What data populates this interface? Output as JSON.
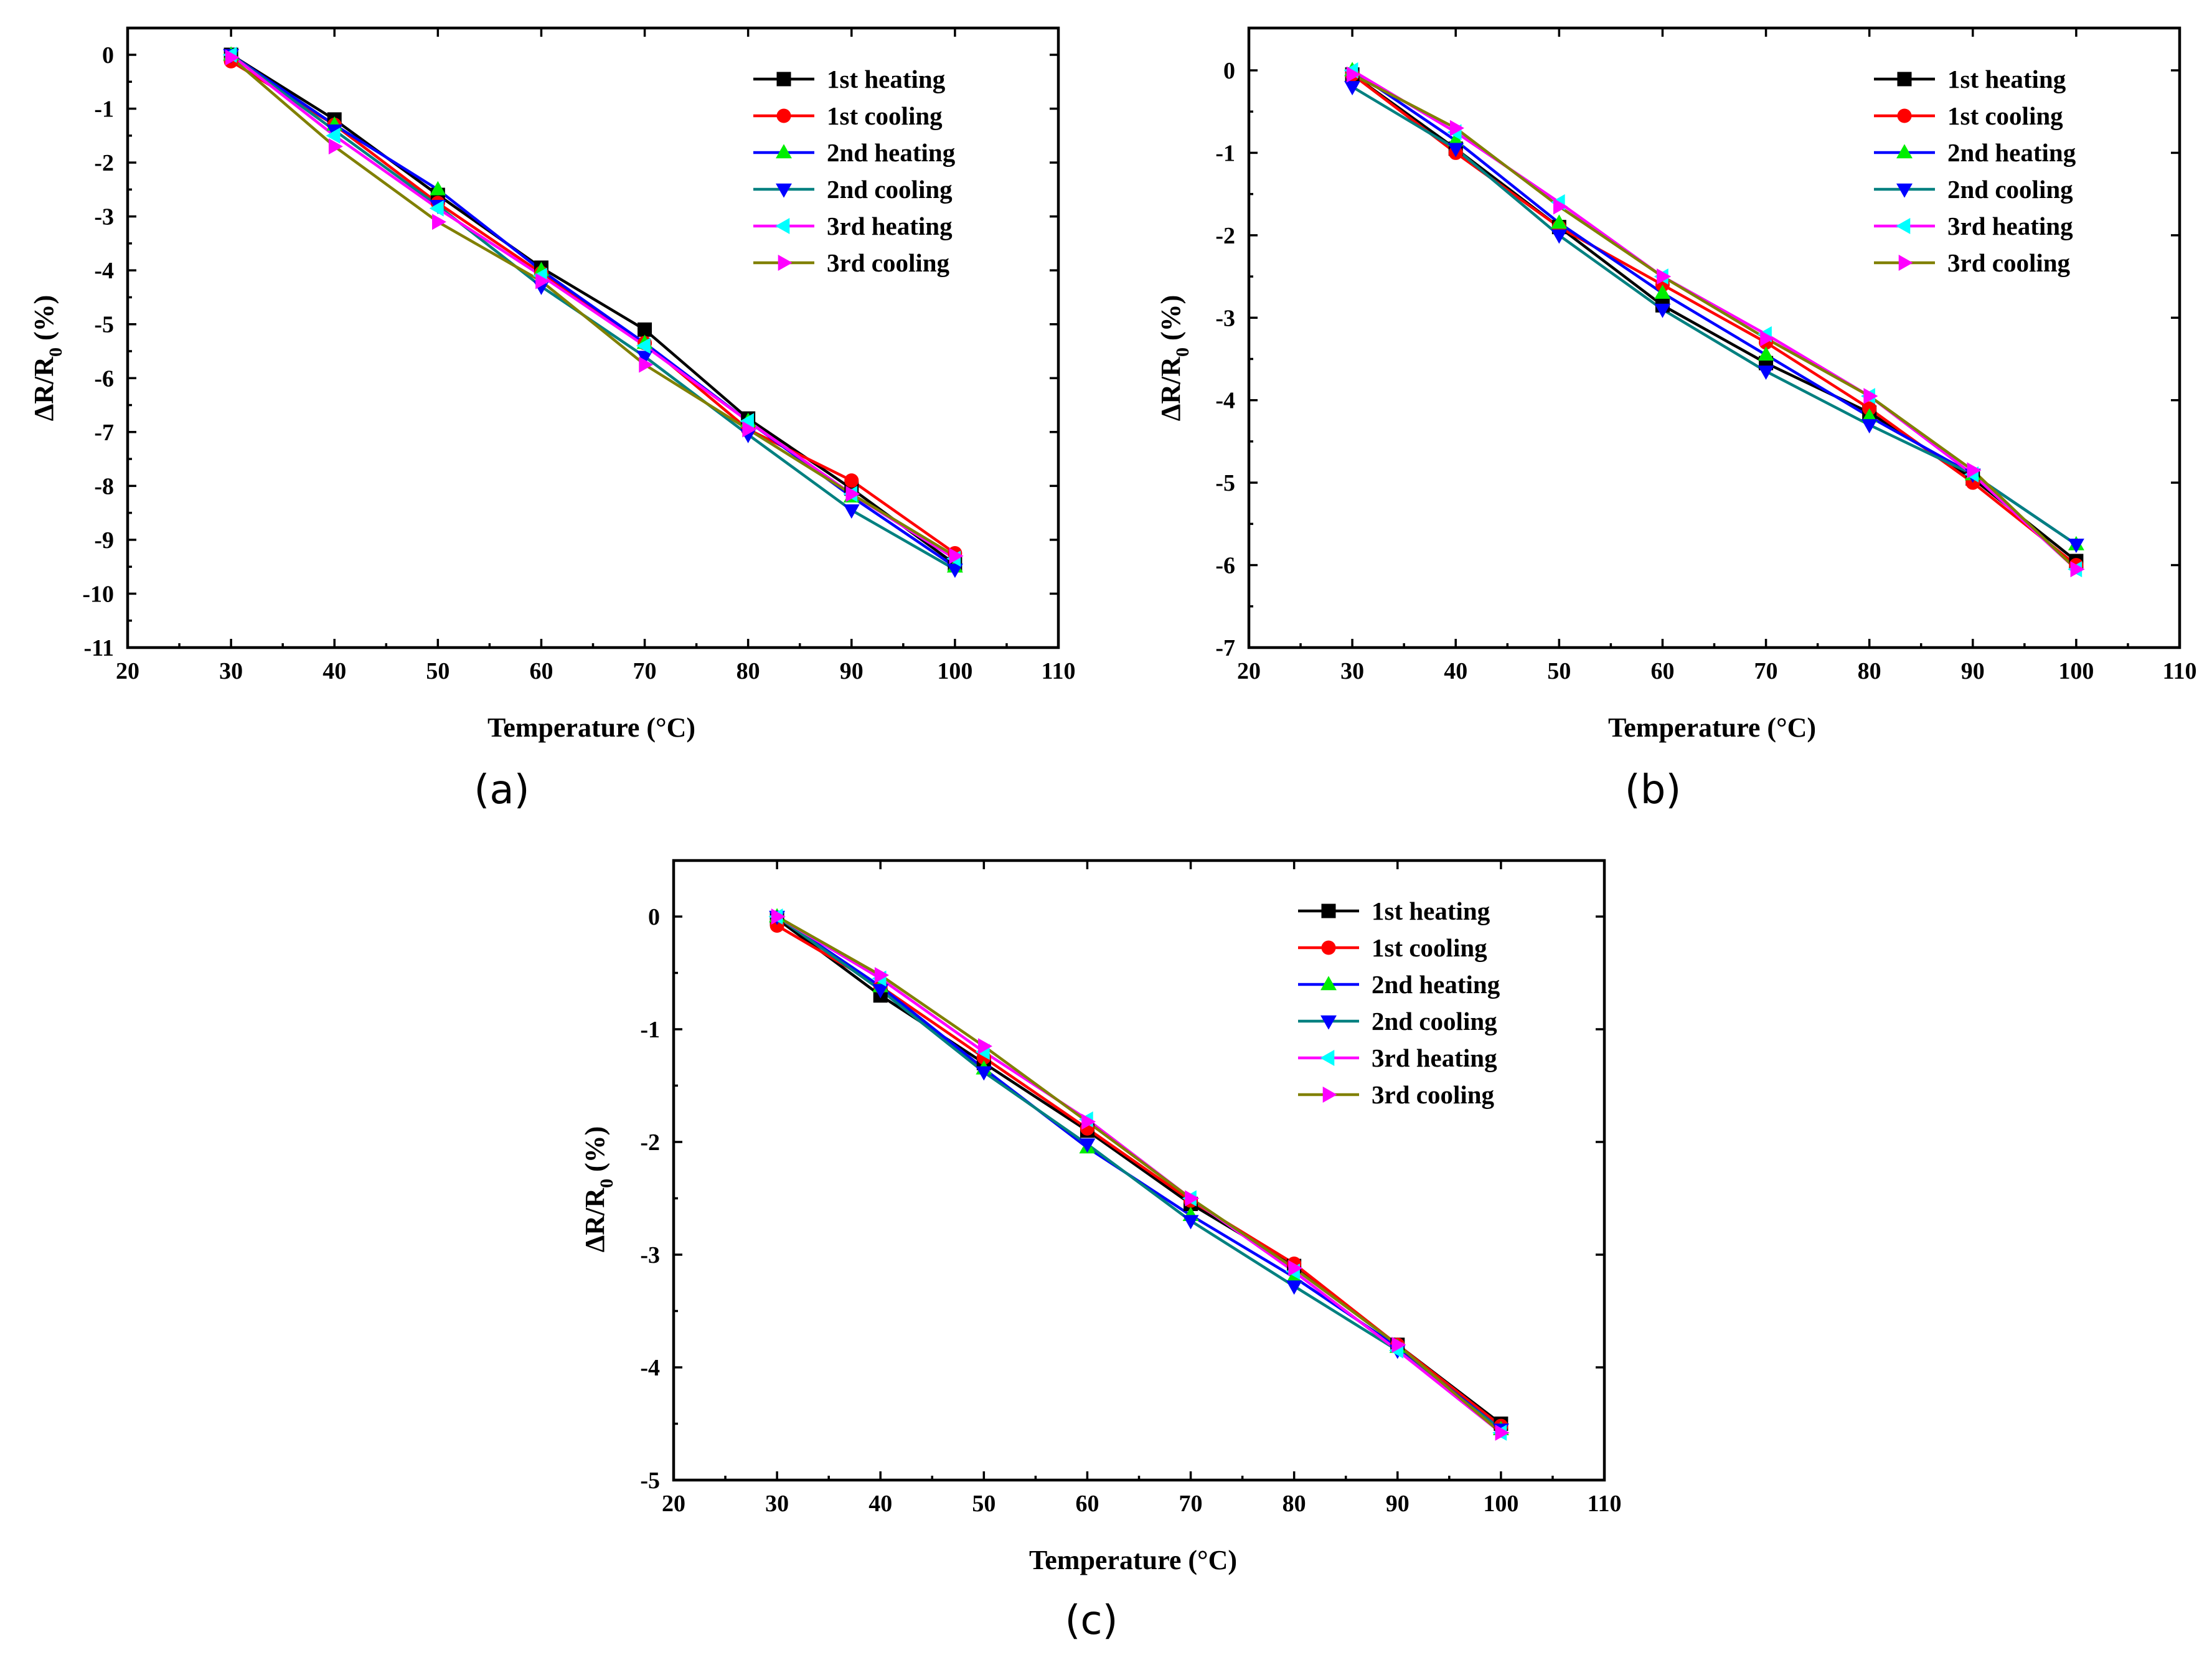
{
  "chart_data": [
    {
      "type": "line",
      "panel_label": "(a)",
      "xlabel": "Temperature (°C)",
      "ylabel_main": "ΔR/R",
      "ylabel_sub": "0",
      "ylabel_unit": " (%)",
      "xlim": [
        20,
        110
      ],
      "ylim": [
        -11,
        0.5
      ],
      "xticks": [
        "20",
        "30",
        "40",
        "50",
        "60",
        "70",
        "80",
        "90",
        "100",
        "110"
      ],
      "yticks": [
        "0",
        "-1",
        "-2",
        "-3",
        "-4",
        "-5",
        "-6",
        "-7",
        "-8",
        "-9",
        "-10",
        "-11"
      ],
      "x": [
        30,
        40,
        50,
        60,
        70,
        80,
        90,
        100
      ],
      "legend_position": "top-right",
      "series": [
        {
          "name": "1st heating",
          "color": "#000000",
          "marker": "square",
          "values": [
            0,
            -1.2,
            -2.6,
            -3.95,
            -5.1,
            -6.75,
            -8.05,
            -9.45
          ]
        },
        {
          "name": "1st cooling",
          "color": "#ff0000",
          "marker": "circle",
          "values": [
            -0.12,
            -1.3,
            -2.75,
            -4.05,
            -5.35,
            -6.95,
            -7.9,
            -9.25
          ]
        },
        {
          "name": "2nd heating",
          "color": "#0000ff",
          "marker": "triangle-up",
          "values": [
            0,
            -1.3,
            -2.5,
            -4.0,
            -5.35,
            -6.8,
            -8.2,
            -9.5
          ]
        },
        {
          "name": "2nd cooling",
          "color": "#008080",
          "marker": "triangle-down",
          "values": [
            0,
            -1.4,
            -2.8,
            -4.3,
            -5.6,
            -7.05,
            -8.45,
            -9.55
          ]
        },
        {
          "name": "3rd heating",
          "color": "#ff00ff",
          "marker": "triangle-left",
          "values": [
            0,
            -1.5,
            -2.85,
            -4.1,
            -5.4,
            -6.8,
            -8.15,
            -9.35
          ]
        },
        {
          "name": "3rd cooling",
          "color": "#808000",
          "marker": "triangle-right",
          "values": [
            -0.05,
            -1.7,
            -3.1,
            -4.2,
            -5.75,
            -6.95,
            -8.15,
            -9.3
          ]
        }
      ],
      "marker_colors": {
        "1st heating": "#000000",
        "1st cooling": "#ff0000",
        "2nd heating": "#00ee00",
        "2nd cooling": "#0000ff",
        "3rd heating": "#00ffff",
        "3rd cooling": "#ff00ff"
      }
    },
    {
      "type": "line",
      "panel_label": "(b)",
      "xlabel": "Temperature (°C)",
      "ylabel_main": "ΔR/R",
      "ylabel_sub": "0",
      "ylabel_unit": " (%)",
      "xlim": [
        20,
        110
      ],
      "ylim": [
        -7,
        0.5
      ],
      "xticks": [
        "20",
        "30",
        "40",
        "50",
        "60",
        "70",
        "80",
        "90",
        "100",
        "110"
      ],
      "yticks": [
        "0",
        "-1",
        "-2",
        "-3",
        "-4",
        "-5",
        "-6",
        "-7"
      ],
      "x": [
        30,
        40,
        50,
        60,
        70,
        80,
        90,
        100
      ],
      "legend_position": "top-right",
      "series": [
        {
          "name": "1st heating",
          "color": "#000000",
          "marker": "square",
          "values": [
            -0.05,
            -0.95,
            -1.9,
            -2.85,
            -3.55,
            -4.15,
            -4.95,
            -5.95
          ]
        },
        {
          "name": "1st cooling",
          "color": "#ff0000",
          "marker": "circle",
          "values": [
            -0.05,
            -1.0,
            -1.9,
            -2.6,
            -3.3,
            -4.1,
            -5.0,
            -6.0
          ]
        },
        {
          "name": "2nd heating",
          "color": "#0000ff",
          "marker": "triangle-up",
          "values": [
            0,
            -0.85,
            -1.85,
            -2.7,
            -3.45,
            -4.2,
            -4.9,
            -5.75
          ]
        },
        {
          "name": "2nd cooling",
          "color": "#008080",
          "marker": "triangle-down",
          "values": [
            -0.2,
            -0.95,
            -2.0,
            -2.9,
            -3.65,
            -4.3,
            -4.9,
            -5.75
          ]
        },
        {
          "name": "3rd heating",
          "color": "#ff00ff",
          "marker": "triangle-left",
          "values": [
            0,
            -0.75,
            -1.6,
            -2.5,
            -3.2,
            -3.95,
            -4.9,
            -6.05
          ]
        },
        {
          "name": "3rd cooling",
          "color": "#808000",
          "marker": "triangle-right",
          "values": [
            -0.05,
            -0.7,
            -1.65,
            -2.5,
            -3.25,
            -3.95,
            -4.85,
            -6.05
          ]
        }
      ],
      "marker_colors": {
        "1st heating": "#000000",
        "1st cooling": "#ff0000",
        "2nd heating": "#00ee00",
        "2nd cooling": "#0000ff",
        "3rd heating": "#00ffff",
        "3rd cooling": "#ff00ff"
      }
    },
    {
      "type": "line",
      "panel_label": "(c)",
      "xlabel": "Temperature (°C)",
      "ylabel_main": "ΔR/R",
      "ylabel_sub": "0",
      "ylabel_unit": " (%)",
      "xlim": [
        20,
        110
      ],
      "ylim": [
        -5,
        0.5
      ],
      "xticks": [
        "20",
        "30",
        "40",
        "50",
        "60",
        "70",
        "80",
        "90",
        "100",
        "110"
      ],
      "yticks": [
        "0",
        "-1",
        "-2",
        "-3",
        "-4",
        "-5"
      ],
      "x": [
        30,
        40,
        50,
        60,
        70,
        80,
        90,
        100
      ],
      "legend_position": "top-right",
      "series": [
        {
          "name": "1st heating",
          "color": "#000000",
          "marker": "square",
          "values": [
            -0.02,
            -0.7,
            -1.3,
            -1.9,
            -2.55,
            -3.1,
            -3.8,
            -4.5
          ]
        },
        {
          "name": "1st cooling",
          "color": "#ff0000",
          "marker": "circle",
          "values": [
            -0.08,
            -0.62,
            -1.25,
            -1.88,
            -2.52,
            -3.08,
            -3.8,
            -4.52
          ]
        },
        {
          "name": "2nd heating",
          "color": "#0000ff",
          "marker": "triangle-up",
          "values": [
            0,
            -0.62,
            -1.35,
            -2.05,
            -2.65,
            -3.2,
            -3.82,
            -4.55
          ]
        },
        {
          "name": "2nd cooling",
          "color": "#008080",
          "marker": "triangle-down",
          "values": [
            0,
            -0.65,
            -1.38,
            -2.02,
            -2.7,
            -3.28,
            -3.85,
            -4.55
          ]
        },
        {
          "name": "3rd heating",
          "color": "#ff00ff",
          "marker": "triangle-left",
          "values": [
            0,
            -0.55,
            -1.2,
            -1.8,
            -2.5,
            -3.15,
            -3.85,
            -4.58
          ]
        },
        {
          "name": "3rd cooling",
          "color": "#808000",
          "marker": "triangle-right",
          "values": [
            0,
            -0.52,
            -1.15,
            -1.82,
            -2.5,
            -3.12,
            -3.8,
            -4.58
          ]
        }
      ],
      "marker_colors": {
        "1st heating": "#000000",
        "1st cooling": "#ff0000",
        "2nd heating": "#00ee00",
        "2nd cooling": "#0000ff",
        "3rd heating": "#00ffff",
        "3rd cooling": "#ff00ff"
      }
    }
  ]
}
